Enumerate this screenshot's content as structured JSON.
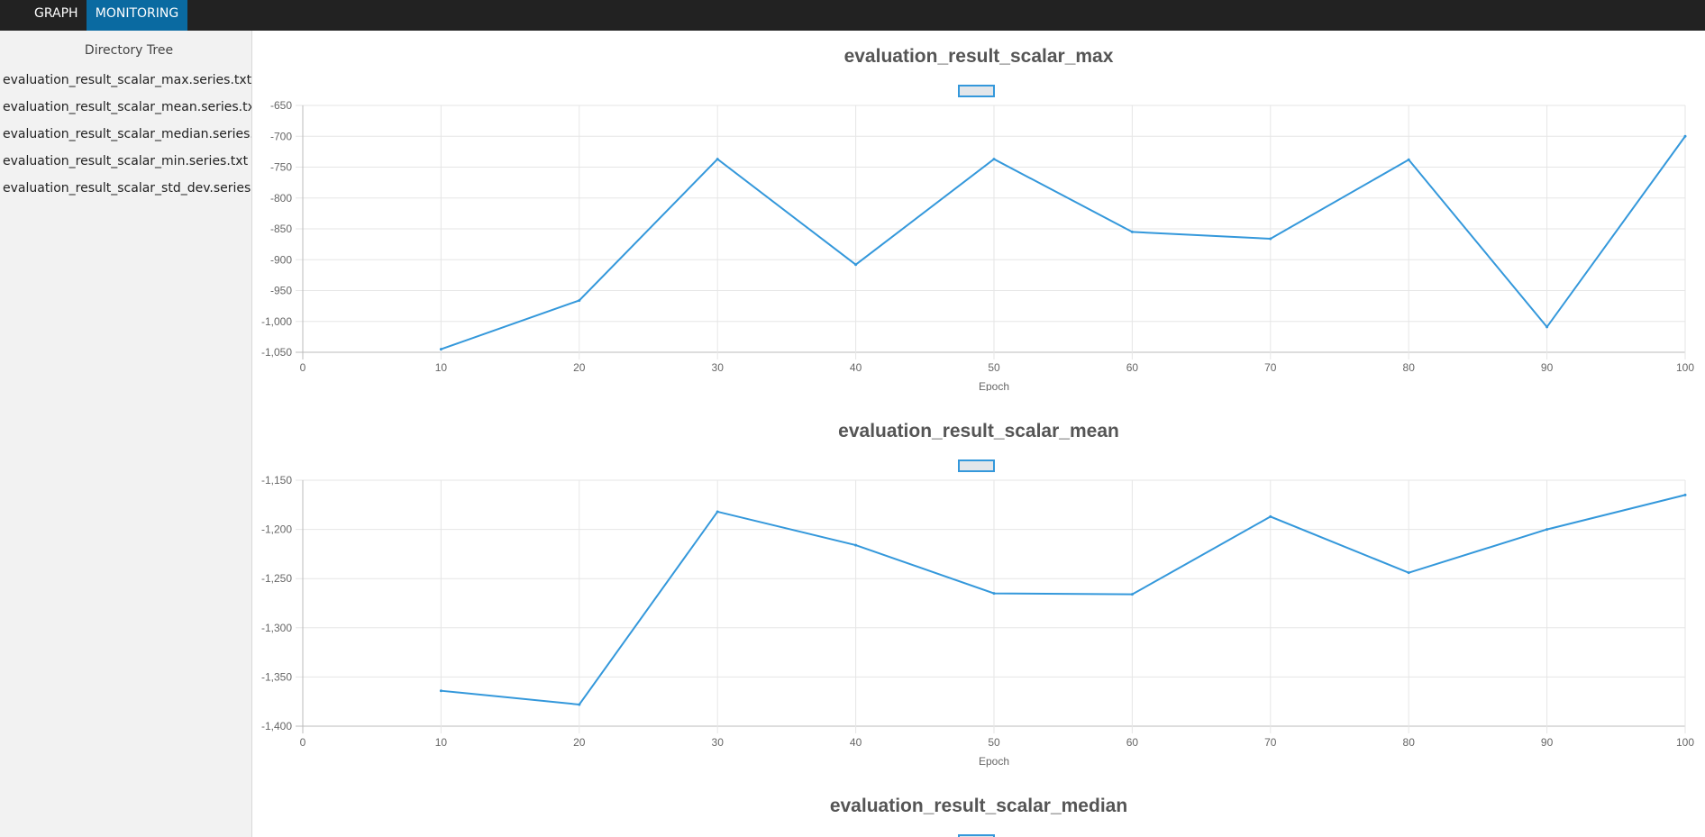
{
  "nav": {
    "tabs": [
      {
        "label": "GRAPH",
        "active": false
      },
      {
        "label": "MONITORING",
        "active": true
      }
    ]
  },
  "sidebar": {
    "title": "Directory Tree",
    "items": [
      {
        "label": "evaluation_result_scalar_max.series.txt"
      },
      {
        "label": "evaluation_result_scalar_mean.series.txt"
      },
      {
        "label": "evaluation_result_scalar_median.series.txt"
      },
      {
        "label": "evaluation_result_scalar_min.series.txt"
      },
      {
        "label": "evaluation_result_scalar_std_dev.series.txt"
      }
    ]
  },
  "colors": {
    "line": "#3498db",
    "grid": "#e6e6e6",
    "active_tab": "#0a6aa1"
  },
  "chart_data": [
    {
      "type": "line",
      "title": "evaluation_result_scalar_max",
      "xlabel": "Epoch",
      "ylabel": "",
      "x": [
        10,
        20,
        30,
        40,
        50,
        60,
        70,
        80,
        90,
        100
      ],
      "series": [
        {
          "values": [
            -1045,
            -966,
            -737,
            -908,
            -737,
            -855,
            -866,
            -738,
            -1009,
            -700
          ]
        }
      ],
      "xlim": [
        0,
        100
      ],
      "ylim": [
        -1050,
        -650
      ],
      "xticks": [
        "0",
        "10",
        "20",
        "30",
        "40",
        "50",
        "60",
        "70",
        "80",
        "90",
        "100"
      ],
      "yticks": [
        "-650",
        "-700",
        "-750",
        "-800",
        "-850",
        "-900",
        "-950",
        "-1,000",
        "-1,050"
      ],
      "grid": true
    },
    {
      "type": "line",
      "title": "evaluation_result_scalar_mean",
      "xlabel": "Epoch",
      "ylabel": "",
      "x": [
        10,
        20,
        30,
        40,
        50,
        60,
        70,
        80,
        90,
        100
      ],
      "series": [
        {
          "values": [
            -1364,
            -1378,
            -1182,
            -1216,
            -1265,
            -1266,
            -1187,
            -1244,
            -1200,
            -1165
          ]
        }
      ],
      "xlim": [
        0,
        100
      ],
      "ylim": [
        -1400,
        -1150
      ],
      "xticks": [
        "0",
        "10",
        "20",
        "30",
        "40",
        "50",
        "60",
        "70",
        "80",
        "90",
        "100"
      ],
      "yticks": [
        "-1,150",
        "-1,200",
        "-1,250",
        "-1,300",
        "-1,350",
        "-1,400"
      ],
      "grid": true
    },
    {
      "type": "line",
      "title": "evaluation_result_scalar_median"
    }
  ]
}
